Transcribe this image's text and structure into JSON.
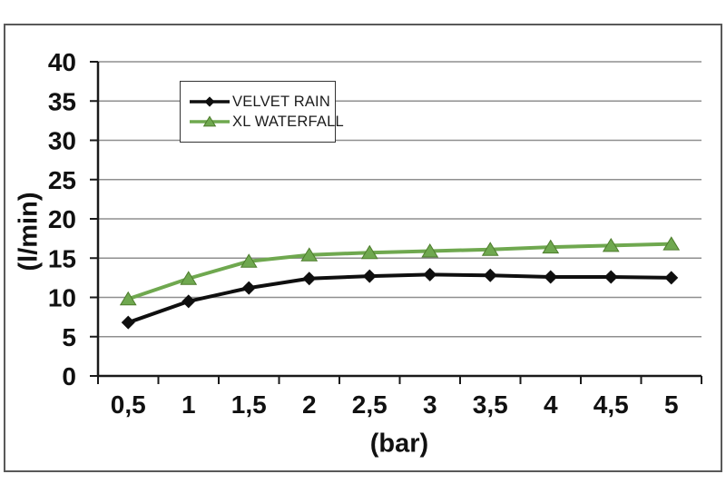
{
  "chart_data": {
    "type": "line",
    "title": "",
    "xlabel": "(bar)",
    "ylabel": "(l/min)",
    "x": [
      0.5,
      1,
      1.5,
      2,
      2.5,
      3,
      3.5,
      4,
      4.5,
      5
    ],
    "x_tick_labels": [
      "0,5",
      "1",
      "1,5",
      "2",
      "2,5",
      "3",
      "3,5",
      "4",
      "4,5",
      "5"
    ],
    "ylim": [
      0,
      40
    ],
    "ytick_step": 5,
    "y_tick_labels": [
      "0",
      "5",
      "10",
      "15",
      "20",
      "25",
      "30",
      "35",
      "40"
    ],
    "grid": "horizontal",
    "legend_position": "inside-top-left",
    "series": [
      {
        "name": "VELVET RAIN",
        "marker": "diamond",
        "color": "#0f0f0f",
        "values": [
          6.8,
          9.5,
          11.2,
          12.4,
          12.7,
          12.9,
          12.8,
          12.6,
          12.6,
          12.5
        ]
      },
      {
        "name": "XL WATERFALL",
        "marker": "triangle",
        "color": "#6fa84f",
        "marker_edge": "#4d7c2c",
        "values": [
          9.8,
          12.4,
          14.6,
          15.4,
          15.7,
          15.9,
          16.1,
          16.4,
          16.6,
          16.8
        ]
      }
    ]
  },
  "colors": {
    "background": "#ffffff",
    "frame_border": "#595959",
    "grid": "#8f8f8f",
    "axis": "#1a1a1a",
    "tick_label": "#111111",
    "legend_border": "#333333"
  }
}
